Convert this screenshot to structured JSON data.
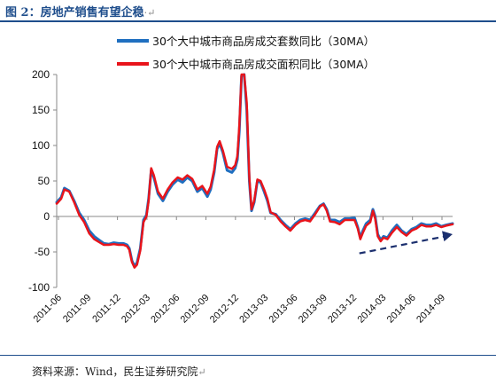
{
  "figure": {
    "title": "图 2：房地产销售有望企稳",
    "source": "资料来源：Wind，民生证券研究院"
  },
  "chart_data": {
    "type": "line",
    "ylim": [
      -100,
      200
    ],
    "yticks": [
      -100,
      -50,
      0,
      50,
      100,
      150,
      200
    ],
    "xtick_labels": [
      "2011-06",
      "2011-09",
      "2011-12",
      "2012-03",
      "2012-06",
      "2012-09",
      "2012-12",
      "2013-03",
      "2013-06",
      "2013-09",
      "2013-12",
      "2014-03",
      "2014-06",
      "2014-09"
    ],
    "x_range": [
      "2011-06-01",
      "2014-10-10"
    ],
    "legend_position": "top",
    "grid": false,
    "series": [
      {
        "name": "30个大中城市商品房成交套数同比（30MA）",
        "color": "#1f6fc0",
        "points": [
          [
            "2011-06-01",
            20
          ],
          [
            "2011-06-15",
            27
          ],
          [
            "2011-06-25",
            40
          ],
          [
            "2011-07-10",
            36
          ],
          [
            "2011-07-25",
            22
          ],
          [
            "2011-08-10",
            5
          ],
          [
            "2011-08-25",
            -5
          ],
          [
            "2011-09-10",
            -20
          ],
          [
            "2011-09-25",
            -28
          ],
          [
            "2011-10-10",
            -33
          ],
          [
            "2011-10-25",
            -38
          ],
          [
            "2011-11-10",
            -39
          ],
          [
            "2011-11-25",
            -37
          ],
          [
            "2011-12-10",
            -38
          ],
          [
            "2011-12-25",
            -38
          ],
          [
            "2012-01-05",
            -40
          ],
          [
            "2012-01-12",
            -45
          ],
          [
            "2012-01-20",
            -62
          ],
          [
            "2012-01-28",
            -70
          ],
          [
            "2012-02-05",
            -65
          ],
          [
            "2012-02-15",
            -45
          ],
          [
            "2012-02-25",
            -5
          ],
          [
            "2012-03-05",
            2
          ],
          [
            "2012-03-12",
            25
          ],
          [
            "2012-03-20",
            65
          ],
          [
            "2012-03-28",
            55
          ],
          [
            "2012-04-10",
            32
          ],
          [
            "2012-04-25",
            22
          ],
          [
            "2012-05-10",
            35
          ],
          [
            "2012-05-25",
            45
          ],
          [
            "2012-06-10",
            52
          ],
          [
            "2012-06-25",
            48
          ],
          [
            "2012-07-10",
            55
          ],
          [
            "2012-07-25",
            50
          ],
          [
            "2012-08-10",
            35
          ],
          [
            "2012-08-25",
            40
          ],
          [
            "2012-09-10",
            28
          ],
          [
            "2012-09-20",
            38
          ],
          [
            "2012-10-01",
            62
          ],
          [
            "2012-10-10",
            95
          ],
          [
            "2012-10-18",
            103
          ],
          [
            "2012-10-28",
            90
          ],
          [
            "2012-11-10",
            65
          ],
          [
            "2012-11-25",
            62
          ],
          [
            "2012-12-05",
            68
          ],
          [
            "2012-12-12",
            80
          ],
          [
            "2012-12-18",
            120
          ],
          [
            "2012-12-25",
            198
          ],
          [
            "2013-01-02",
            200
          ],
          [
            "2013-01-10",
            150
          ],
          [
            "2013-01-18",
            50
          ],
          [
            "2013-01-25",
            8
          ],
          [
            "2013-02-02",
            20
          ],
          [
            "2013-02-12",
            50
          ],
          [
            "2013-02-22",
            48
          ],
          [
            "2013-03-05",
            35
          ],
          [
            "2013-03-15",
            22
          ],
          [
            "2013-03-25",
            5
          ],
          [
            "2013-04-10",
            3
          ],
          [
            "2013-04-25",
            -5
          ],
          [
            "2013-05-10",
            -12
          ],
          [
            "2013-05-25",
            -18
          ],
          [
            "2013-06-10",
            -10
          ],
          [
            "2013-06-25",
            -5
          ],
          [
            "2013-07-10",
            -3
          ],
          [
            "2013-07-25",
            -5
          ],
          [
            "2013-08-10",
            5
          ],
          [
            "2013-08-25",
            15
          ],
          [
            "2013-09-05",
            18
          ],
          [
            "2013-09-15",
            10
          ],
          [
            "2013-09-25",
            -5
          ],
          [
            "2013-10-10",
            -5
          ],
          [
            "2013-10-25",
            -8
          ],
          [
            "2013-11-10",
            -3
          ],
          [
            "2013-11-25",
            -3
          ],
          [
            "2013-12-10",
            -2
          ],
          [
            "2013-12-20",
            -15
          ],
          [
            "2013-12-28",
            -30
          ],
          [
            "2014-01-05",
            -20
          ],
          [
            "2014-01-15",
            -10
          ],
          [
            "2014-01-28",
            -5
          ],
          [
            "2014-02-05",
            10
          ],
          [
            "2014-02-12",
            0
          ],
          [
            "2014-02-20",
            -25
          ],
          [
            "2014-03-01",
            -33
          ],
          [
            "2014-03-10",
            -28
          ],
          [
            "2014-03-22",
            -30
          ],
          [
            "2014-04-05",
            -20
          ],
          [
            "2014-04-20",
            -12
          ],
          [
            "2014-05-05",
            -20
          ],
          [
            "2014-05-20",
            -25
          ],
          [
            "2014-06-05",
            -18
          ],
          [
            "2014-06-20",
            -15
          ],
          [
            "2014-07-05",
            -10
          ],
          [
            "2014-07-20",
            -12
          ],
          [
            "2014-08-05",
            -12
          ],
          [
            "2014-08-20",
            -10
          ],
          [
            "2014-09-05",
            -14
          ],
          [
            "2014-09-20",
            -12
          ],
          [
            "2014-10-10",
            -10
          ]
        ]
      },
      {
        "name": "30个大中城市商品房成交面积同比（30MA）",
        "color": "#e8141b",
        "points": [
          [
            "2011-06-01",
            18
          ],
          [
            "2011-06-15",
            25
          ],
          [
            "2011-06-25",
            38
          ],
          [
            "2011-07-10",
            35
          ],
          [
            "2011-07-25",
            20
          ],
          [
            "2011-08-10",
            2
          ],
          [
            "2011-08-25",
            -8
          ],
          [
            "2011-09-10",
            -24
          ],
          [
            "2011-09-25",
            -32
          ],
          [
            "2011-10-10",
            -36
          ],
          [
            "2011-10-25",
            -40
          ],
          [
            "2011-11-10",
            -40
          ],
          [
            "2011-11-25",
            -39
          ],
          [
            "2011-12-10",
            -40
          ],
          [
            "2011-12-25",
            -40
          ],
          [
            "2012-01-05",
            -42
          ],
          [
            "2012-01-12",
            -47
          ],
          [
            "2012-01-20",
            -64
          ],
          [
            "2012-01-28",
            -72
          ],
          [
            "2012-02-05",
            -68
          ],
          [
            "2012-02-15",
            -48
          ],
          [
            "2012-02-25",
            -8
          ],
          [
            "2012-03-05",
            0
          ],
          [
            "2012-03-12",
            22
          ],
          [
            "2012-03-20",
            68
          ],
          [
            "2012-03-28",
            58
          ],
          [
            "2012-04-10",
            35
          ],
          [
            "2012-04-25",
            25
          ],
          [
            "2012-05-10",
            38
          ],
          [
            "2012-05-25",
            48
          ],
          [
            "2012-06-10",
            55
          ],
          [
            "2012-06-25",
            52
          ],
          [
            "2012-07-10",
            58
          ],
          [
            "2012-07-25",
            53
          ],
          [
            "2012-08-10",
            38
          ],
          [
            "2012-08-25",
            43
          ],
          [
            "2012-09-10",
            32
          ],
          [
            "2012-09-20",
            42
          ],
          [
            "2012-10-01",
            66
          ],
          [
            "2012-10-10",
            98
          ],
          [
            "2012-10-18",
            106
          ],
          [
            "2012-10-28",
            93
          ],
          [
            "2012-11-10",
            70
          ],
          [
            "2012-11-25",
            67
          ],
          [
            "2012-12-05",
            72
          ],
          [
            "2012-12-12",
            85
          ],
          [
            "2012-12-18",
            128
          ],
          [
            "2012-12-25",
            200
          ],
          [
            "2013-01-02",
            200
          ],
          [
            "2013-01-10",
            160
          ],
          [
            "2013-01-18",
            55
          ],
          [
            "2013-01-25",
            10
          ],
          [
            "2013-02-02",
            22
          ],
          [
            "2013-02-12",
            52
          ],
          [
            "2013-02-22",
            50
          ],
          [
            "2013-03-05",
            38
          ],
          [
            "2013-03-15",
            25
          ],
          [
            "2013-03-25",
            6
          ],
          [
            "2013-04-10",
            2
          ],
          [
            "2013-04-25",
            -7
          ],
          [
            "2013-05-10",
            -14
          ],
          [
            "2013-05-25",
            -20
          ],
          [
            "2013-06-10",
            -12
          ],
          [
            "2013-06-25",
            -7
          ],
          [
            "2013-07-10",
            -5
          ],
          [
            "2013-07-25",
            -7
          ],
          [
            "2013-08-10",
            3
          ],
          [
            "2013-08-25",
            14
          ],
          [
            "2013-09-05",
            17
          ],
          [
            "2013-09-15",
            8
          ],
          [
            "2013-09-25",
            -7
          ],
          [
            "2013-10-10",
            -8
          ],
          [
            "2013-10-25",
            -11
          ],
          [
            "2013-11-10",
            -5
          ],
          [
            "2013-11-25",
            -5
          ],
          [
            "2013-12-10",
            -5
          ],
          [
            "2013-12-20",
            -17
          ],
          [
            "2013-12-28",
            -32
          ],
          [
            "2014-01-05",
            -23
          ],
          [
            "2014-01-15",
            -13
          ],
          [
            "2014-01-28",
            -8
          ],
          [
            "2014-02-05",
            8
          ],
          [
            "2014-02-12",
            -3
          ],
          [
            "2014-02-20",
            -28
          ],
          [
            "2014-03-01",
            -35
          ],
          [
            "2014-03-10",
            -30
          ],
          [
            "2014-03-22",
            -32
          ],
          [
            "2014-04-05",
            -23
          ],
          [
            "2014-04-20",
            -15
          ],
          [
            "2014-05-05",
            -22
          ],
          [
            "2014-05-20",
            -27
          ],
          [
            "2014-06-05",
            -20
          ],
          [
            "2014-06-20",
            -17
          ],
          [
            "2014-07-05",
            -12
          ],
          [
            "2014-07-20",
            -14
          ],
          [
            "2014-08-05",
            -14
          ],
          [
            "2014-08-20",
            -12
          ],
          [
            "2014-09-05",
            -15
          ],
          [
            "2014-09-20",
            -13
          ],
          [
            "2014-10-10",
            -11
          ]
        ]
      }
    ],
    "annotation": {
      "type": "dashed-arrow",
      "color": "#1b2f6e",
      "from": [
        "2013-12-25",
        -52
      ],
      "to": [
        "2014-10-10",
        -25
      ]
    }
  }
}
